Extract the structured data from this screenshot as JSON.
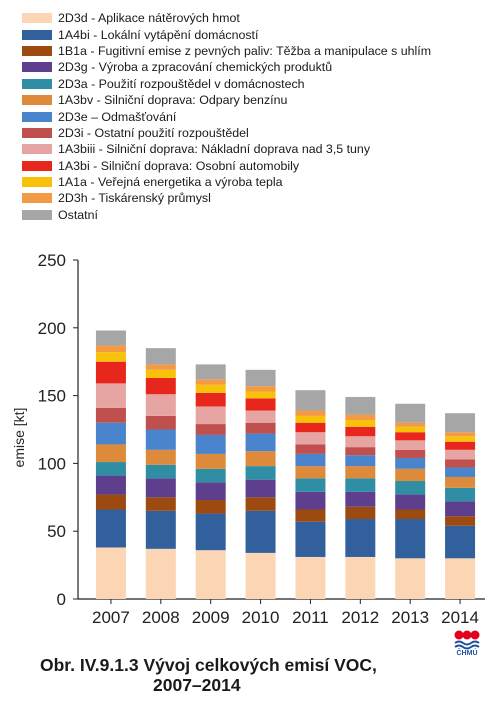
{
  "chart_data": {
    "type": "bar",
    "stacked": true,
    "categories": [
      "2007",
      "2008",
      "2009",
      "2010",
      "2011",
      "2012",
      "2013",
      "2014"
    ],
    "ylabel": "emise [kt]",
    "ylim": [
      0,
      250
    ],
    "yticks": [
      0,
      50,
      100,
      150,
      200,
      250
    ],
    "grid": false,
    "legend_position": "top",
    "series": [
      {
        "name": "2D3d - Aplikace nátěrových hmot",
        "color": "#fcd5b5",
        "values": [
          38,
          37,
          36,
          34,
          31,
          31,
          30,
          30
        ]
      },
      {
        "name": "1A4bi - Lokální vytápění domácností",
        "color": "#31609d",
        "values": [
          28,
          28,
          27,
          31,
          26,
          28,
          29,
          24
        ]
      },
      {
        "name": "1B1a - Fugitivní emise z pevných paliv: Těžba a manipulace s uhlím",
        "color": "#9c4a10",
        "values": [
          11,
          10,
          10,
          10,
          9,
          9,
          7,
          7
        ]
      },
      {
        "name": "2D3g - Výroba a zpracování chemických produktů",
        "color": "#5e3f8e",
        "values": [
          14,
          14,
          13,
          13,
          13,
          11,
          11,
          11
        ]
      },
      {
        "name": "2D3a - Použití rozpouštědel v domácnostech",
        "color": "#2f8da4",
        "values": [
          10,
          10,
          10,
          10,
          10,
          10,
          10,
          10
        ]
      },
      {
        "name": "1A3bv - Silniční doprava: Odpary benzínu",
        "color": "#dd8a3a",
        "values": [
          13,
          11,
          11,
          11,
          9,
          9,
          9,
          8
        ]
      },
      {
        "name": "2D3e – Odmašťování",
        "color": "#4a84cd",
        "values": [
          16,
          15,
          14,
          13,
          9,
          8,
          8,
          7
        ]
      },
      {
        "name": "2D3i - Ostatní použití rozpouštědel",
        "color": "#c0504d",
        "values": [
          11,
          10,
          8,
          8,
          7,
          6,
          6,
          6
        ]
      },
      {
        "name": "1A3biii - Silniční doprava: Nákladní doprava nad 3,5 tuny",
        "color": "#e6a5a3",
        "values": [
          18,
          16,
          13,
          9,
          9,
          8,
          7,
          7
        ]
      },
      {
        "name": "1A3bi - Silniční doprava: Osobní automobily",
        "color": "#e8271c",
        "values": [
          16,
          12,
          10,
          9,
          7,
          7,
          6,
          6
        ]
      },
      {
        "name": "1A1a - Veřejná energetika a výroba tepla",
        "color": "#f9c20a",
        "values": [
          7,
          6,
          6,
          5,
          5,
          5,
          4,
          4
        ]
      },
      {
        "name": "2D3h - Tiskárenský průmysl",
        "color": "#f29a44",
        "values": [
          5,
          4,
          4,
          4,
          4,
          4,
          3,
          3
        ]
      },
      {
        "name": "Ostatní",
        "color": "#a6a6a6",
        "values": [
          11,
          12,
          11,
          12,
          15,
          13,
          14,
          14
        ]
      }
    ]
  },
  "caption": {
    "line1": "Obr. IV.9.1.3  Vývoj celkových emisí VOC,",
    "line2": "2007–2014"
  },
  "logo": {
    "text": "ČHMÚ",
    "colors": [
      "#e3001b",
      "#1e4fa0"
    ]
  }
}
